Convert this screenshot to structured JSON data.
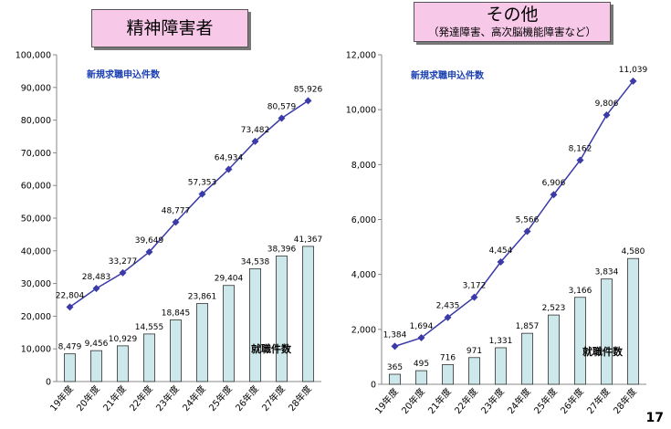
{
  "page_number": "17",
  "colors": {
    "bar_fill": "#cde8ea",
    "bar_stroke": "#333333",
    "line": "#3a3aa8",
    "title_box": "#f8c8e8"
  },
  "chart_data": [
    {
      "type": "bar",
      "title": "精神障害者",
      "subtitle": "",
      "categories": [
        "19年度",
        "20年度",
        "21年度",
        "22年度",
        "23年度",
        "24年度",
        "25年度",
        "26年度",
        "27年度",
        "28年度"
      ],
      "ylim": [
        0,
        100000
      ],
      "yticks": [
        "0",
        "10,000",
        "20,000",
        "30,000",
        "40,000",
        "50,000",
        "60,000",
        "70,000",
        "80,000",
        "90,000",
        "100,000"
      ],
      "series": [
        {
          "name": "新規求職申込件数",
          "kind": "line",
          "values": [
            22804,
            28483,
            33277,
            39649,
            48777,
            57353,
            64934,
            73482,
            80579,
            85926
          ],
          "labels": [
            "22,804",
            "28,483",
            "33,277",
            "39,649",
            "48,777",
            "57,353",
            "64,934",
            "73,482",
            "80,579",
            "85,926"
          ]
        },
        {
          "name": "就職件数",
          "kind": "bar",
          "values": [
            8479,
            9456,
            10929,
            14555,
            18845,
            23861,
            29404,
            34538,
            38396,
            41367
          ],
          "labels": [
            "8,479",
            "9,456",
            "10,929",
            "14,555",
            "18,845",
            "23,861",
            "29,404",
            "34,538",
            "38,396",
            "41,367"
          ]
        }
      ]
    },
    {
      "type": "bar",
      "title": "その他",
      "subtitle": "（発達障害、高次脳機能障害など）",
      "categories": [
        "19年度",
        "20年度",
        "21年度",
        "22年度",
        "23年度",
        "24年度",
        "25年度",
        "26年度",
        "27年度",
        "28年度"
      ],
      "ylim": [
        0,
        12000
      ],
      "yticks": [
        "0",
        "2,000",
        "4,000",
        "6,000",
        "8,000",
        "10,000",
        "12,000"
      ],
      "series": [
        {
          "name": "新規求職申込件数",
          "kind": "line",
          "values": [
            1384,
            1694,
            2435,
            3172,
            4454,
            5566,
            6906,
            8162,
            9806,
            11039
          ],
          "labels": [
            "1,384",
            "1,694",
            "2,435",
            "3,172",
            "4,454",
            "5,566",
            "6,906",
            "8,162",
            "9,806",
            "11,039"
          ]
        },
        {
          "name": "就職件数",
          "kind": "bar",
          "values": [
            365,
            495,
            716,
            971,
            1331,
            1857,
            2523,
            3166,
            3834,
            4580
          ],
          "labels": [
            "365",
            "495",
            "716",
            "971",
            "1,331",
            "1,857",
            "2,523",
            "3,166",
            "3,834",
            "4,580"
          ]
        }
      ]
    }
  ]
}
